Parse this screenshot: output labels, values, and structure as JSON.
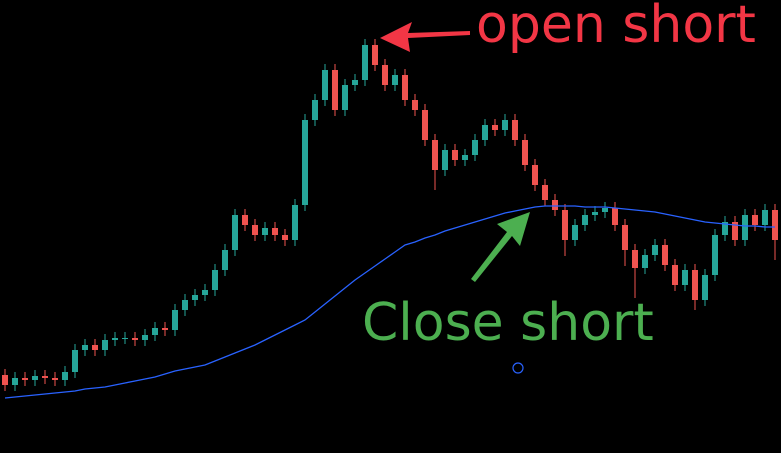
{
  "chart_data": {
    "type": "candlestick",
    "ylim": [
      0,
      453
    ],
    "up_color": "#26a69a",
    "down_color": "#ef5350",
    "open": [
      78,
      68,
      75,
      73,
      77,
      75,
      73,
      81,
      103,
      108,
      103,
      113,
      115,
      115,
      113,
      118,
      125,
      123,
      143,
      153,
      158,
      163,
      183,
      203,
      238,
      228,
      218,
      225,
      218,
      213,
      248,
      333,
      353,
      383,
      343,
      368,
      373,
      408,
      388,
      368,
      378,
      353,
      343,
      313,
      283,
      303,
      293,
      298,
      313,
      328,
      323,
      333,
      313,
      288,
      268,
      253,
      243,
      213,
      228,
      238,
      241,
      245,
      228,
      203,
      185,
      198,
      208,
      188,
      168,
      183,
      153,
      178,
      218,
      231,
      213,
      238,
      228,
      243
    ],
    "high": [
      84,
      81,
      81,
      83,
      83,
      81,
      87,
      109,
      114,
      114,
      119,
      121,
      121,
      121,
      124,
      131,
      131,
      149,
      159,
      164,
      169,
      189,
      209,
      244,
      244,
      234,
      231,
      231,
      224,
      254,
      339,
      359,
      389,
      389,
      374,
      379,
      414,
      414,
      394,
      384,
      384,
      359,
      349,
      319,
      309,
      309,
      304,
      319,
      334,
      334,
      339,
      339,
      319,
      294,
      274,
      259,
      249,
      234,
      244,
      247,
      251,
      251,
      234,
      209,
      204,
      214,
      214,
      194,
      189,
      189,
      184,
      224,
      237,
      237,
      244,
      244,
      249,
      249
    ],
    "low": [
      62,
      62,
      67,
      67,
      69,
      67,
      67,
      75,
      97,
      97,
      97,
      107,
      109,
      107,
      107,
      112,
      117,
      117,
      137,
      147,
      152,
      157,
      177,
      197,
      222,
      212,
      212,
      212,
      207,
      207,
      242,
      327,
      347,
      337,
      337,
      362,
      367,
      382,
      362,
      362,
      347,
      337,
      307,
      263,
      277,
      287,
      287,
      292,
      307,
      317,
      317,
      307,
      282,
      262,
      247,
      237,
      197,
      207,
      222,
      232,
      235,
      222,
      187,
      155,
      179,
      192,
      182,
      162,
      162,
      143,
      147,
      172,
      212,
      207,
      207,
      222,
      222,
      193
    ],
    "close": [
      68,
      75,
      73,
      77,
      75,
      73,
      81,
      103,
      108,
      103,
      113,
      115,
      115,
      113,
      118,
      125,
      123,
      143,
      153,
      158,
      163,
      183,
      203,
      238,
      228,
      218,
      225,
      218,
      213,
      248,
      333,
      353,
      383,
      343,
      368,
      373,
      408,
      388,
      368,
      378,
      353,
      343,
      313,
      283,
      303,
      293,
      298,
      313,
      328,
      323,
      333,
      313,
      288,
      268,
      253,
      243,
      213,
      228,
      238,
      241,
      245,
      228,
      203,
      185,
      198,
      208,
      188,
      168,
      183,
      153,
      178,
      218,
      231,
      213,
      238,
      228,
      243,
      213
    ],
    "ma": {
      "color": "#2962ff",
      "values": [
        55,
        56,
        57,
        58,
        59,
        60,
        61,
        62,
        64,
        65,
        66,
        68,
        70,
        72,
        74,
        76,
        79,
        82,
        84,
        86,
        88,
        92,
        96,
        100,
        104,
        108,
        113,
        118,
        123,
        128,
        133,
        141,
        149,
        157,
        165,
        173,
        180,
        187,
        194,
        201,
        208,
        211,
        215,
        218,
        222,
        225,
        228,
        231,
        234,
        237,
        240,
        242,
        244,
        246,
        247,
        247,
        247,
        247,
        246,
        246,
        246,
        245,
        244,
        243,
        242,
        241,
        239,
        237,
        235,
        233,
        231,
        230,
        229,
        228,
        227,
        227,
        226,
        226
      ]
    },
    "annotations": [
      {
        "text": "open short",
        "color": "#f23645"
      },
      {
        "text": "Close short",
        "color": "#4caf50"
      }
    ]
  }
}
